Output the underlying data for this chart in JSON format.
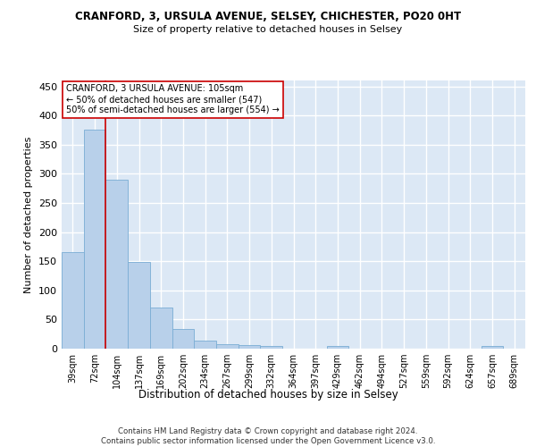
{
  "title1": "CRANFORD, 3, URSULA AVENUE, SELSEY, CHICHESTER, PO20 0HT",
  "title2": "Size of property relative to detached houses in Selsey",
  "xlabel": "Distribution of detached houses by size in Selsey",
  "ylabel": "Number of detached properties",
  "footer1": "Contains HM Land Registry data © Crown copyright and database right 2024.",
  "footer2": "Contains public sector information licensed under the Open Government Licence v3.0.",
  "bar_labels": [
    "39sqm",
    "72sqm",
    "104sqm",
    "137sqm",
    "169sqm",
    "202sqm",
    "234sqm",
    "267sqm",
    "299sqm",
    "332sqm",
    "364sqm",
    "397sqm",
    "429sqm",
    "462sqm",
    "494sqm",
    "527sqm",
    "559sqm",
    "592sqm",
    "624sqm",
    "657sqm",
    "689sqm"
  ],
  "bar_values": [
    165,
    375,
    290,
    148,
    70,
    33,
    14,
    7,
    6,
    4,
    0,
    0,
    4,
    0,
    0,
    0,
    0,
    0,
    0,
    4,
    0
  ],
  "bar_color": "#b8d0ea",
  "bar_edge_color": "#7aadd4",
  "background_color": "#dce8f5",
  "grid_color": "#ffffff",
  "vline_color": "#cc0000",
  "vline_x_idx": 1.5,
  "annotation_text_line1": "CRANFORD, 3 URSULA AVENUE: 105sqm",
  "annotation_text_line2": "← 50% of detached houses are smaller (547)",
  "annotation_text_line3": "50% of semi-detached houses are larger (554) →",
  "ylim_max": 460,
  "yticks": [
    0,
    50,
    100,
    150,
    200,
    250,
    300,
    350,
    400,
    450
  ]
}
